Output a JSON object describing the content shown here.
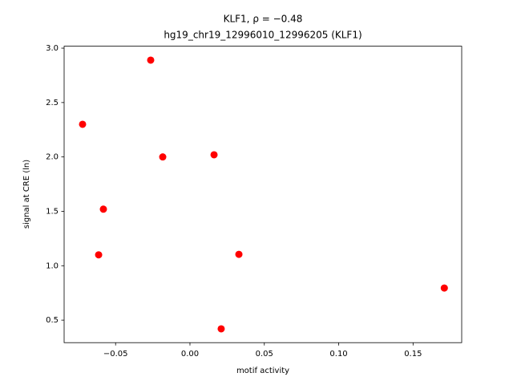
{
  "chart_data": {
    "type": "scatter",
    "title": [
      "KLF1, ρ = −0.48",
      "hg19_chr19_12996010_12996205 (KLF1)"
    ],
    "xlabel": "motif activity",
    "ylabel": "signal at CRE (ln)",
    "color": "#ff0000",
    "x": [
      -0.0264,
      -0.0722,
      -0.0183,
      0.0162,
      -0.0582,
      -0.0614,
      0.0329,
      0.171,
      0.021
    ],
    "values": [
      2.89,
      2.3,
      2.0,
      2.02,
      1.52,
      1.1,
      1.105,
      0.795,
      0.42
    ],
    "xlim": [
      -0.0846,
      0.1827
    ],
    "ylim": [
      0.293,
      3.018
    ],
    "xticks": [
      {
        "value": -0.05,
        "label": "−0.05"
      },
      {
        "value": 0,
        "label": "0.00"
      },
      0.05,
      {
        "value": 0.1,
        "label": "0.10"
      },
      0.15
    ],
    "yticks": [
      0.5,
      {
        "value": 1,
        "label": "1.0"
      },
      1.5,
      {
        "value": 2,
        "label": "2.0"
      },
      2.5,
      {
        "value": 3,
        "label": "3.0"
      }
    ]
  }
}
